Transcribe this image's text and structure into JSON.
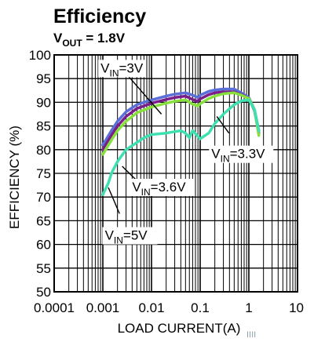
{
  "chart_data": {
    "type": "line",
    "title": "Efficiency",
    "subtitle": {
      "main": "V",
      "sub": "OUT",
      "rest": " = 1.8V"
    },
    "xlabel": "LOAD CURRENT(A)",
    "ylabel": "EFFICIENCY (%)",
    "x_scale": "log",
    "xlim": [
      0.0001,
      10
    ],
    "ylim": [
      50,
      100
    ],
    "x_ticks": [
      {
        "value": 0.0001,
        "label": "0.0001"
      },
      {
        "value": 0.001,
        "label": "0.001"
      },
      {
        "value": 0.01,
        "label": "0.01"
      },
      {
        "value": 0.1,
        "label": "0.1"
      },
      {
        "value": 1,
        "label": "1"
      },
      {
        "value": 10,
        "label": "10"
      }
    ],
    "y_ticks": [
      {
        "value": 50,
        "label": "50"
      },
      {
        "value": 55,
        "label": "55"
      },
      {
        "value": 60,
        "label": "60"
      },
      {
        "value": 65,
        "label": "65"
      },
      {
        "value": 70,
        "label": "70"
      },
      {
        "value": 75,
        "label": "75"
      },
      {
        "value": 80,
        "label": "80"
      },
      {
        "value": 85,
        "label": "85"
      },
      {
        "value": 90,
        "label": "90"
      },
      {
        "value": 95,
        "label": "95"
      },
      {
        "value": 100,
        "label": "100"
      }
    ],
    "grid": true,
    "series": [
      {
        "name": "VIN=3V",
        "label": {
          "main": "V",
          "sub": "IN",
          "rest": "=3V"
        },
        "color": "#5b6fd8",
        "points": [
          [
            0.001,
            81
          ],
          [
            0.0015,
            84
          ],
          [
            0.002,
            86
          ],
          [
            0.003,
            88
          ],
          [
            0.005,
            89.5
          ],
          [
            0.01,
            90.5
          ],
          [
            0.02,
            91.3
          ],
          [
            0.03,
            91.7
          ],
          [
            0.05,
            92
          ],
          [
            0.07,
            91.5
          ],
          [
            0.09,
            91
          ],
          [
            0.1,
            91.5
          ],
          [
            0.15,
            92.3
          ],
          [
            0.2,
            92.6
          ],
          [
            0.3,
            92.8
          ],
          [
            0.5,
            92.8
          ],
          [
            0.7,
            92
          ],
          [
            1,
            91
          ],
          [
            1.3,
            88.5
          ],
          [
            1.6,
            84
          ]
        ]
      },
      {
        "name": "VIN=3.3V",
        "label": {
          "main": "V",
          "sub": "IN",
          "rest": "=3.3V"
        },
        "color": "#7a1f8a",
        "points": [
          [
            0.001,
            80
          ],
          [
            0.0015,
            83
          ],
          [
            0.002,
            85
          ],
          [
            0.003,
            87
          ],
          [
            0.005,
            88.7
          ],
          [
            0.01,
            89.8
          ],
          [
            0.02,
            90.6
          ],
          [
            0.03,
            91
          ],
          [
            0.05,
            91.3
          ],
          [
            0.07,
            90.6
          ],
          [
            0.09,
            90.2
          ],
          [
            0.1,
            90.7
          ],
          [
            0.15,
            91.6
          ],
          [
            0.2,
            92
          ],
          [
            0.3,
            92.2
          ],
          [
            0.5,
            92.2
          ],
          [
            0.7,
            91.6
          ],
          [
            1,
            90.8
          ],
          [
            1.3,
            88.3
          ],
          [
            1.6,
            83.5
          ]
        ]
      },
      {
        "name": "VIN=3.6V",
        "label": {
          "main": "V",
          "sub": "IN",
          "rest": "=3.6V"
        },
        "color": "#88e03c",
        "points": [
          [
            0.001,
            79
          ],
          [
            0.0015,
            82
          ],
          [
            0.002,
            84
          ],
          [
            0.003,
            86
          ],
          [
            0.005,
            87.8
          ],
          [
            0.01,
            89
          ],
          [
            0.02,
            89.8
          ],
          [
            0.03,
            90.2
          ],
          [
            0.05,
            90.5
          ],
          [
            0.07,
            89.6
          ],
          [
            0.09,
            89.2
          ],
          [
            0.1,
            89.7
          ],
          [
            0.15,
            90.8
          ],
          [
            0.2,
            91.3
          ],
          [
            0.3,
            91.8
          ],
          [
            0.5,
            92
          ],
          [
            0.7,
            91.5
          ],
          [
            1,
            90.8
          ],
          [
            1.3,
            88.5
          ],
          [
            1.6,
            83
          ]
        ]
      },
      {
        "name": "VIN=5V",
        "label": {
          "main": "V",
          "sub": "IN",
          "rest": "=5V"
        },
        "color": "#3ee0b0",
        "points": [
          [
            0.001,
            70.5
          ],
          [
            0.0013,
            73
          ],
          [
            0.0015,
            75
          ],
          [
            0.002,
            77.5
          ],
          [
            0.003,
            80
          ],
          [
            0.005,
            81.5
          ],
          [
            0.007,
            82.5
          ],
          [
            0.01,
            83.2
          ],
          [
            0.02,
            83.5
          ],
          [
            0.03,
            83.8
          ],
          [
            0.04,
            84
          ],
          [
            0.05,
            83.5
          ],
          [
            0.06,
            82.5
          ],
          [
            0.07,
            84
          ],
          [
            0.09,
            82.8
          ],
          [
            0.1,
            82.3
          ],
          [
            0.15,
            83.5
          ],
          [
            0.2,
            85.5
          ],
          [
            0.3,
            87.5
          ],
          [
            0.5,
            89.5
          ],
          [
            0.7,
            90.3
          ],
          [
            1,
            90.5
          ],
          [
            1.3,
            88.5
          ],
          [
            1.6,
            84
          ]
        ]
      }
    ]
  },
  "watermark": "IIII"
}
